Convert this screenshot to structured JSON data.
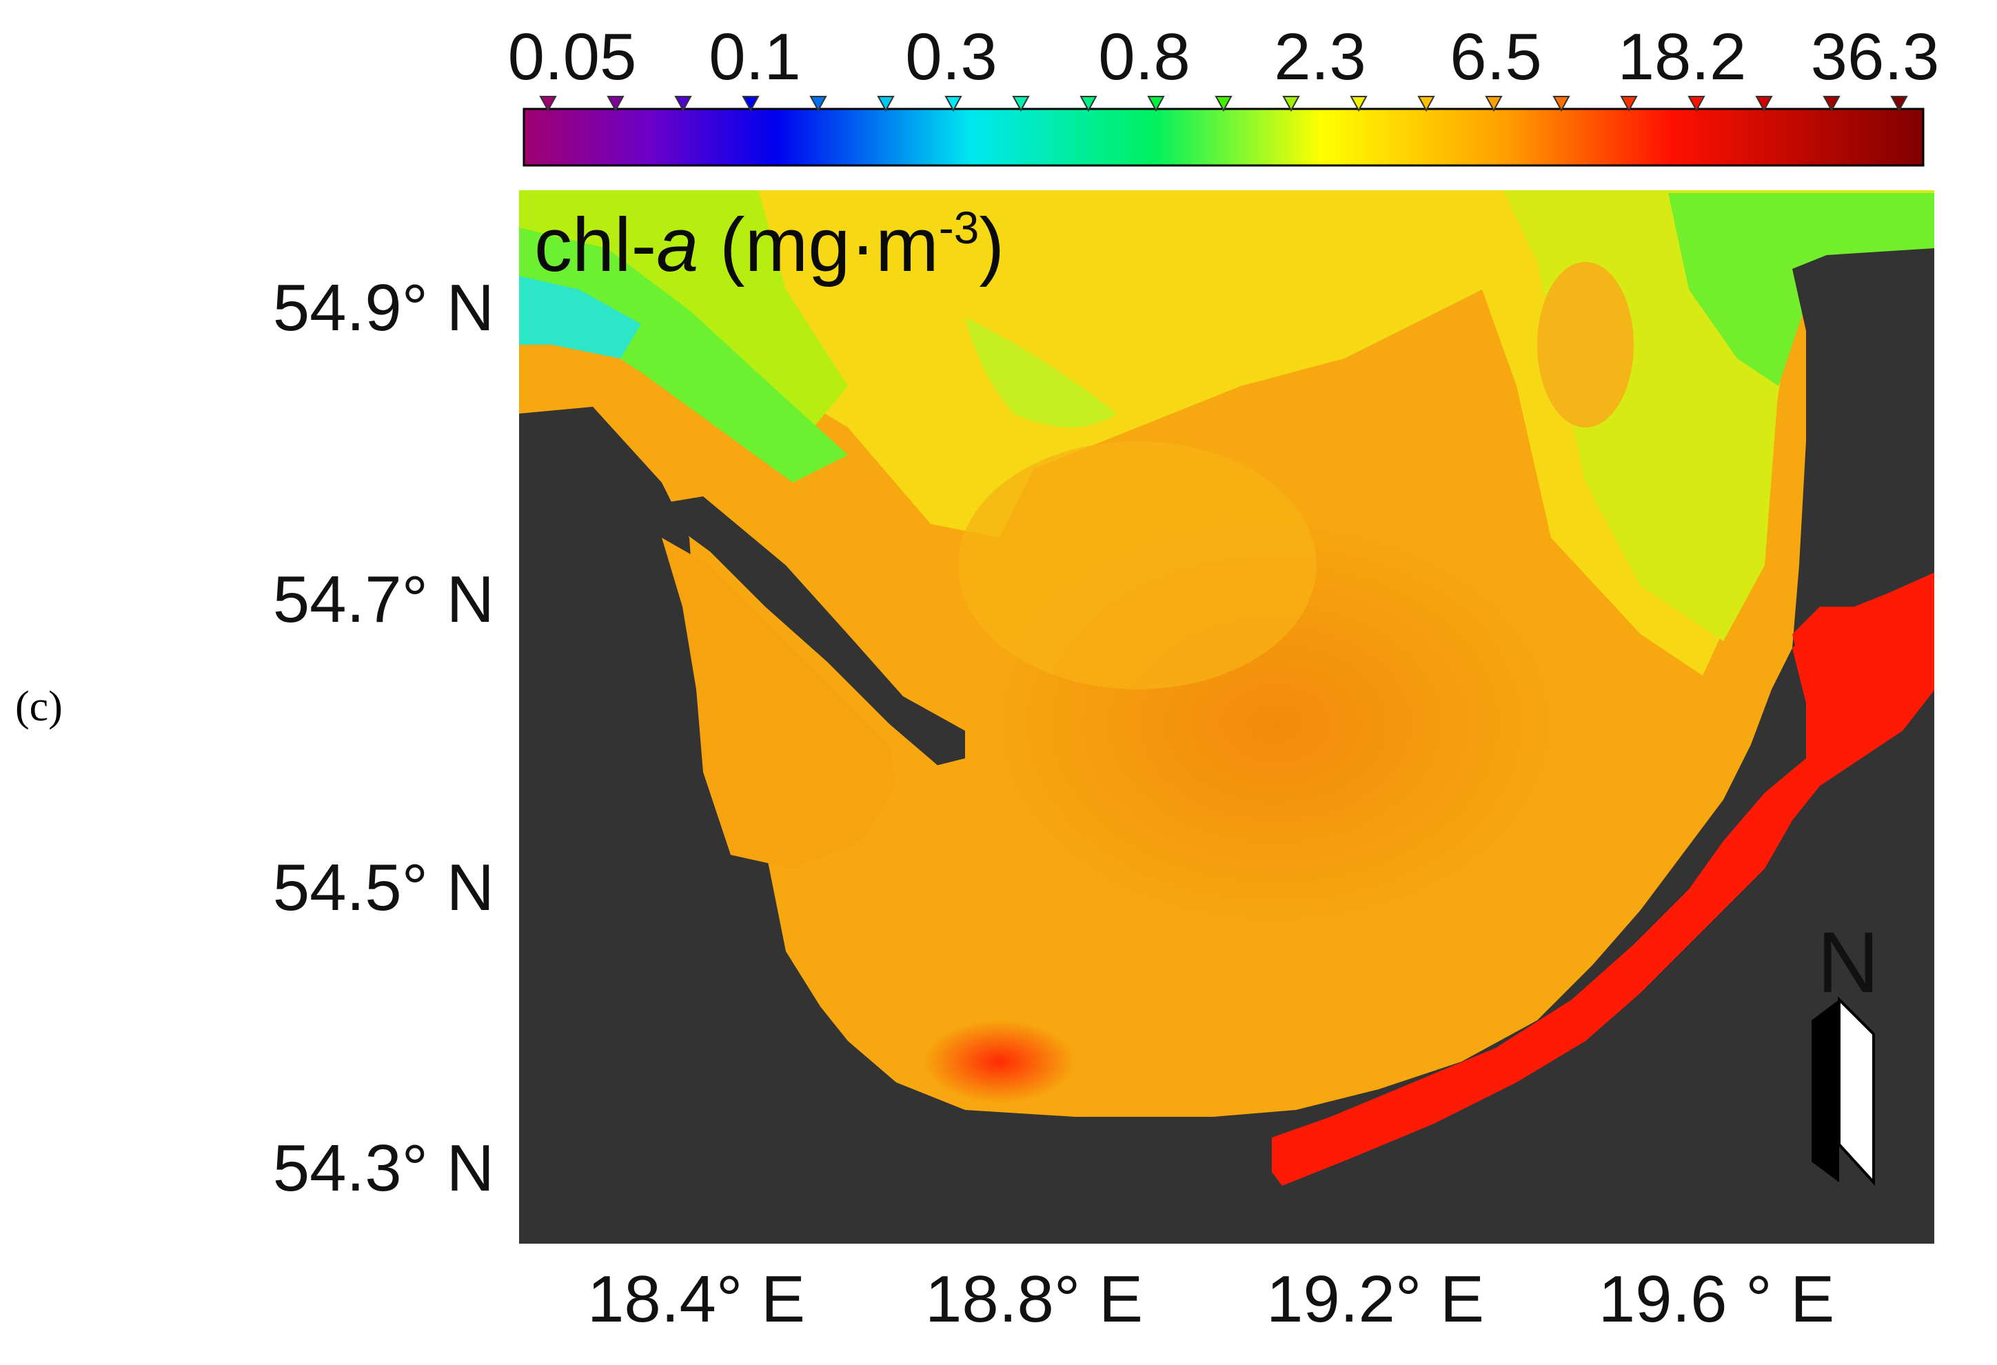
{
  "panel_label": "(c)",
  "map": {
    "title_prefix": "chl-",
    "title_variable": "a",
    "title_unit_open": " (mg·m",
    "title_unit_exp": "-3",
    "title_unit_close": ")",
    "north_arrow_label": "N"
  },
  "colorbar": {
    "tick_labels": [
      "0.05",
      "0.1",
      "0.3",
      "0.8",
      "2.3",
      "6.5",
      "18.2",
      "36.3"
    ],
    "colors": [
      "#a0006f",
      "#6b00c8",
      "#0000f0",
      "#00e8f0",
      "#00f060",
      "#ffff00",
      "#ffa000",
      "#ff1000",
      "#800000"
    ]
  },
  "axes": {
    "lat_labels": [
      "54.9° N",
      "54.7° N",
      "54.5° N",
      "54.3° N"
    ],
    "lon_labels": [
      "18.4° E",
      "18.8° E",
      "19.2° E",
      "19.6 ° E"
    ]
  },
  "colors": {
    "land": "#333333",
    "offshore_mesotrophic": "#b8f000",
    "gulf_main": "#f7a20f",
    "gulf_center": "#f38f0c",
    "central_light": "#f8c811",
    "lagoon": "#ff1a05"
  }
}
